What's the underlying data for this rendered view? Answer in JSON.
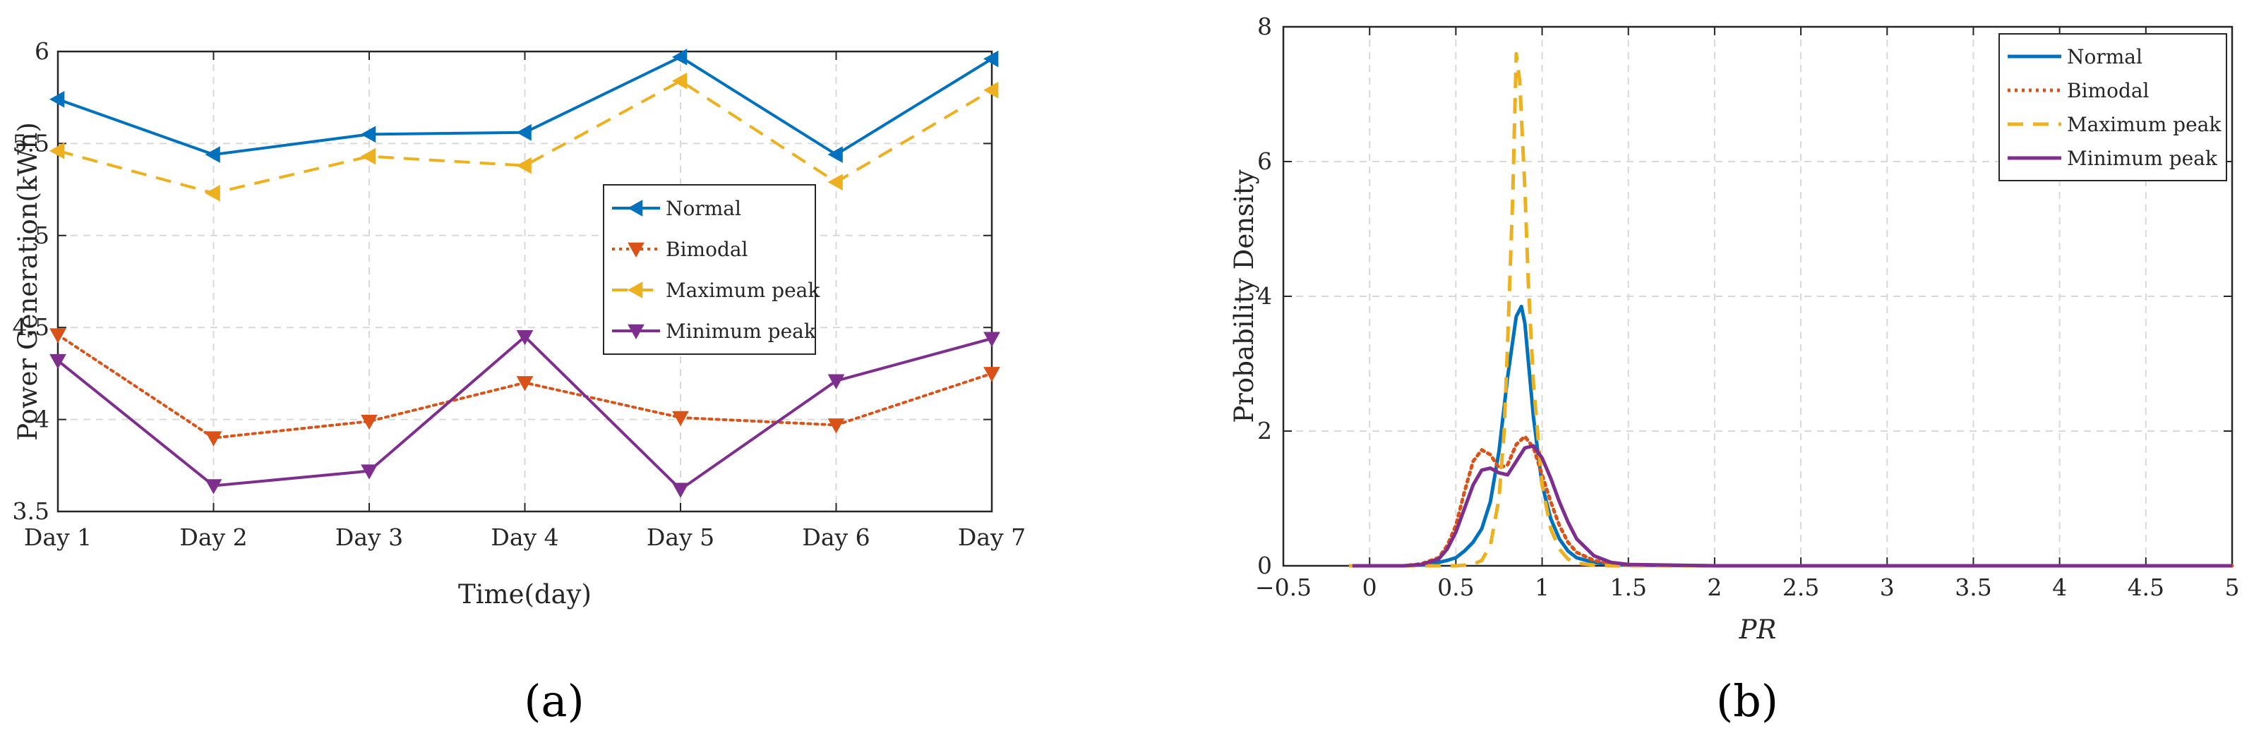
{
  "panels": {
    "a": "a",
    "b": "b"
  },
  "chart_data": [
    {
      "type": "line",
      "xlabel": "Time(day)",
      "ylabel": "Power Generation(kWh)",
      "categories": [
        "Day 1",
        "Day 2",
        "Day 3",
        "Day 4",
        "Day 5",
        "Day 6",
        "Day 7"
      ],
      "ylim": [
        3.5,
        6
      ],
      "yticks": [
        3.5,
        4,
        4.5,
        5,
        5.5,
        6
      ],
      "grid": true,
      "legend_position": "center-right",
      "series": [
        {
          "name": "Normal",
          "color": "#0072BD",
          "style": "solid",
          "marker": "triangle-left",
          "values": [
            5.74,
            5.44,
            5.55,
            5.56,
            5.97,
            5.44,
            5.96
          ]
        },
        {
          "name": "Bimodal",
          "color": "#D95319",
          "style": "dotted",
          "marker": "triangle-down",
          "values": [
            4.46,
            3.9,
            3.99,
            4.2,
            4.01,
            3.97,
            4.25
          ]
        },
        {
          "name": "Maximum peak",
          "color": "#EDB120",
          "style": "dashed",
          "marker": "triangle-left",
          "values": [
            5.46,
            5.23,
            5.43,
            5.38,
            5.84,
            5.29,
            5.79
          ]
        },
        {
          "name": "Minimum peak",
          "color": "#7E2F8E",
          "style": "solid",
          "marker": "triangle-down",
          "values": [
            4.32,
            3.64,
            3.72,
            4.45,
            3.62,
            4.21,
            4.44
          ]
        }
      ]
    },
    {
      "type": "line",
      "xlabel": "PR",
      "ylabel": "Probability Density",
      "xlim": [
        -0.5,
        5
      ],
      "ylim": [
        0,
        8
      ],
      "xticks": [
        -0.5,
        0,
        0.5,
        1,
        1.5,
        2,
        2.5,
        3,
        3.5,
        4,
        4.5,
        5
      ],
      "yticks": [
        0,
        2,
        4,
        6,
        8
      ],
      "grid": true,
      "legend_position": "top-right",
      "series": [
        {
          "name": "Normal",
          "color": "#0072BD",
          "style": "solid",
          "x": [
            -0.1,
            0.2,
            0.35,
            0.45,
            0.5,
            0.55,
            0.6,
            0.65,
            0.7,
            0.75,
            0.8,
            0.85,
            0.88,
            0.9,
            0.95,
            1.0,
            1.05,
            1.1,
            1.15,
            1.2,
            1.3,
            1.4,
            1.5,
            2.0,
            5.0
          ],
          "y": [
            0,
            0,
            0.02,
            0.08,
            0.12,
            0.22,
            0.35,
            0.55,
            0.95,
            1.7,
            2.8,
            3.7,
            3.85,
            3.6,
            2.2,
            1.2,
            0.7,
            0.4,
            0.22,
            0.12,
            0.05,
            0.02,
            0.01,
            0,
            0
          ]
        },
        {
          "name": "Bimodal",
          "color": "#D95319",
          "style": "dotted",
          "x": [
            -0.1,
            0.2,
            0.3,
            0.4,
            0.45,
            0.5,
            0.55,
            0.6,
            0.65,
            0.7,
            0.75,
            0.8,
            0.85,
            0.9,
            0.95,
            1.0,
            1.05,
            1.1,
            1.15,
            1.2,
            1.3,
            1.4,
            1.5,
            2.0,
            5.0
          ],
          "y": [
            0,
            0,
            0.03,
            0.12,
            0.3,
            0.6,
            1.1,
            1.55,
            1.72,
            1.65,
            1.45,
            1.5,
            1.8,
            1.92,
            1.75,
            1.35,
            0.95,
            0.6,
            0.35,
            0.2,
            0.08,
            0.03,
            0.01,
            0,
            0
          ]
        },
        {
          "name": "Maximum peak",
          "color": "#EDB120",
          "style": "dashed",
          "x": [
            -0.12,
            0.5,
            0.6,
            0.65,
            0.7,
            0.75,
            0.78,
            0.8,
            0.83,
            0.85,
            0.87,
            0.9,
            0.92,
            0.95,
            1.0,
            1.05,
            1.1,
            1.15,
            1.2,
            1.3,
            1.4,
            2.0,
            5.0
          ],
          "y": [
            0,
            0,
            0.02,
            0.08,
            0.3,
            1.0,
            2.0,
            3.3,
            5.5,
            7.6,
            7.2,
            5.6,
            4.2,
            2.7,
            1.2,
            0.55,
            0.25,
            0.1,
            0.04,
            0.01,
            0,
            0,
            0
          ]
        },
        {
          "name": "Minimum peak",
          "color": "#7E2F8E",
          "style": "solid",
          "x": [
            -0.1,
            0.2,
            0.3,
            0.4,
            0.45,
            0.5,
            0.55,
            0.6,
            0.65,
            0.7,
            0.75,
            0.8,
            0.85,
            0.9,
            0.95,
            1.0,
            1.05,
            1.1,
            1.15,
            1.2,
            1.3,
            1.4,
            1.5,
            2.0,
            5.0
          ],
          "y": [
            0,
            0,
            0.02,
            0.1,
            0.25,
            0.5,
            0.85,
            1.2,
            1.42,
            1.45,
            1.38,
            1.35,
            1.55,
            1.75,
            1.78,
            1.6,
            1.3,
            0.95,
            0.65,
            0.4,
            0.15,
            0.05,
            0.02,
            0,
            0
          ]
        }
      ]
    }
  ]
}
